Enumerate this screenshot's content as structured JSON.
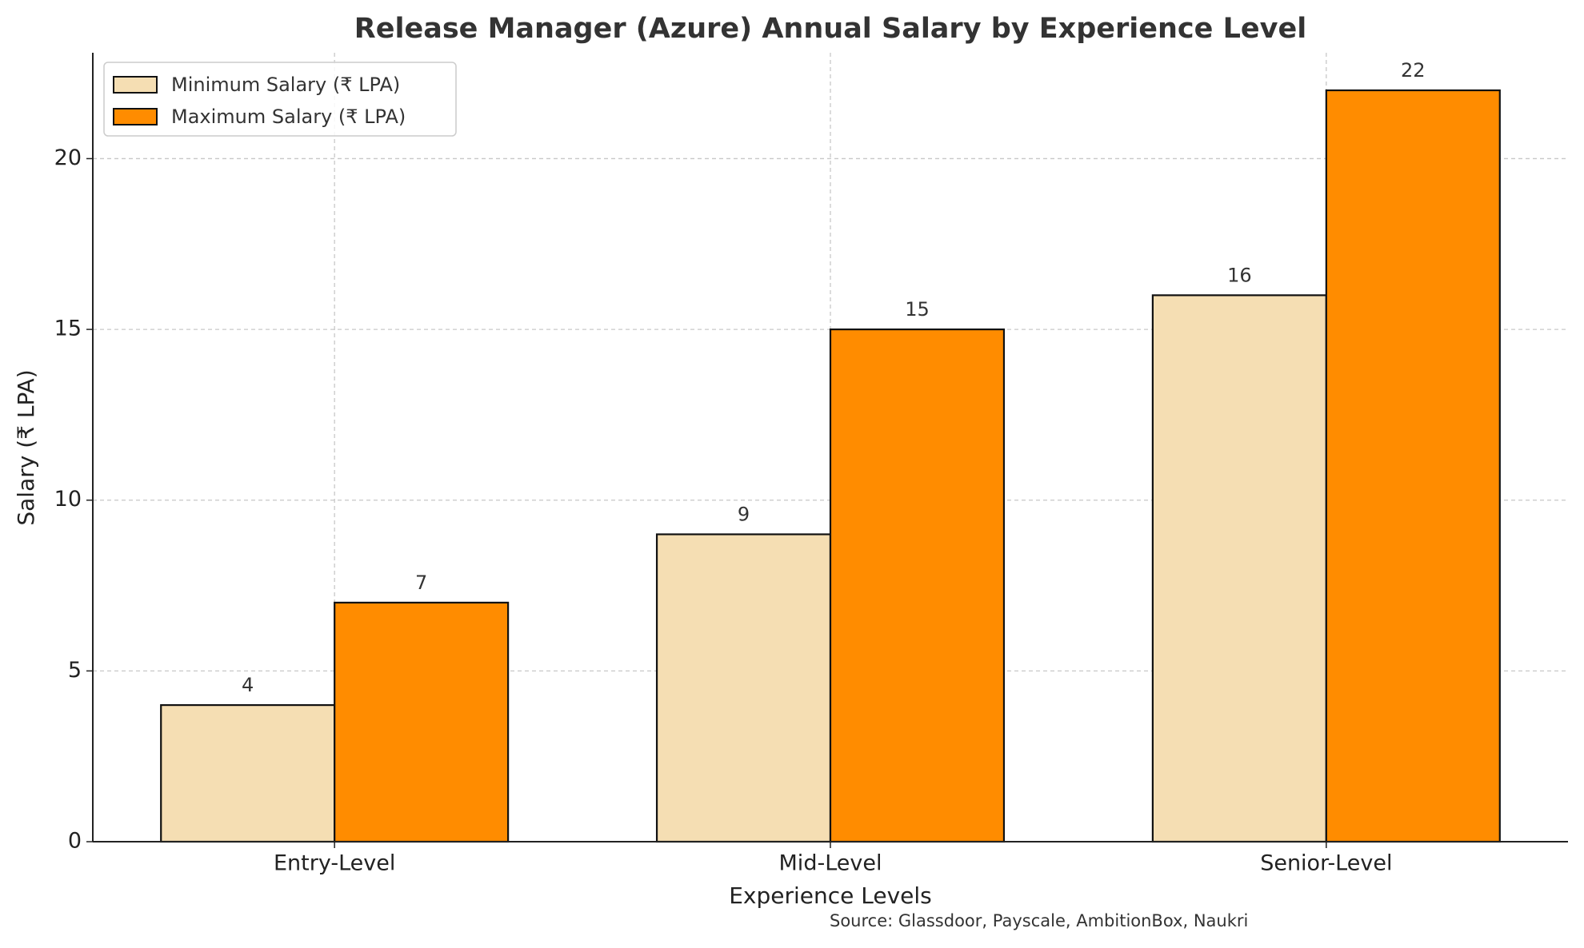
{
  "chart_data": {
    "type": "bar",
    "title": "Release Manager (Azure) Annual Salary by Experience Level",
    "x_label": "Experience Levels",
    "y_label": "Salary (₹ LPA)",
    "annotation": "Source: Glassdoor, Payscale, AmbitionBox, Naukri",
    "categories": [
      "Entry-Level",
      "Mid-Level",
      "Senior-Level"
    ],
    "series": [
      {
        "name": "Minimum Salary (₹ LPA)",
        "color": "#f5deb3",
        "values": [
          4,
          9,
          16
        ]
      },
      {
        "name": "Maximum Salary (₹ LPA)",
        "color": "#ff8c00",
        "values": [
          7,
          15,
          22
        ]
      }
    ],
    "ylim": [
      0,
      23.1
    ],
    "yticks": [
      0,
      5,
      10,
      15,
      20
    ],
    "grid": true,
    "legend": "upper-left"
  }
}
